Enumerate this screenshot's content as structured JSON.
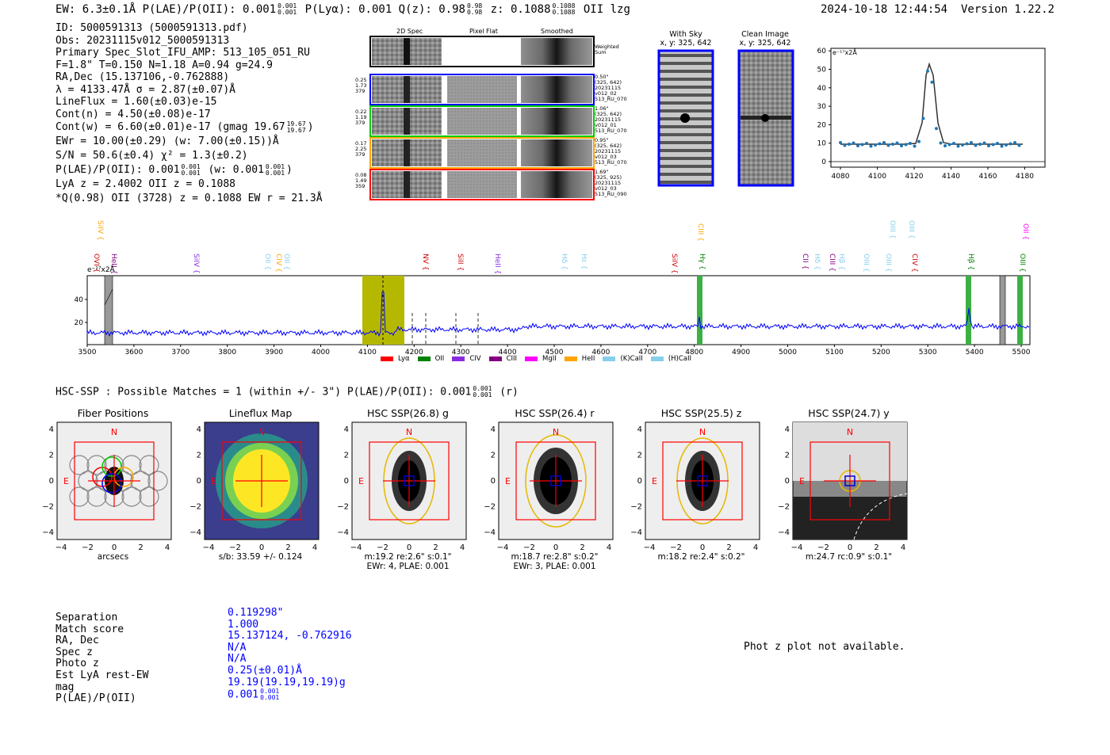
{
  "header": {
    "summary_prefix": "EW: 6.3±0.1Å  P(LAE)/P(OII): 0.001",
    "summary_frac1_top": "0.001",
    "summary_frac1_bot": "0.001",
    "summary_mid": "  P(Lyα): 0.001  Q(z): 0.98",
    "summary_frac2_top": "0.98",
    "summary_frac2_bot": "0.98",
    "summary_z": "  z: 0.1088",
    "summary_frac3_top": "0.1088",
    "summary_frac3_bot": "0.1088",
    "summary_tail": " OII   lzg",
    "timestamp": "2024-10-18 12:44:54",
    "version": "Version 1.22.2"
  },
  "info": {
    "id": "ID: 5000591313 (5000591313.pdf)",
    "obs": "Obs: 20231115v012_5000591313",
    "primary": "Primary Spec_Slot_IFU_AMP: 513_105_051_RU",
    "f_line": "F=1.8\"  T=0.150  N=1.18  A=0.94  g=24.9",
    "radec": "RA,Dec (15.137106,-0.762888)",
    "lambda": "λ = 4133.47Å  σ = 2.87(±0.07)Å",
    "lineflux": "LineFlux = 1.60(±0.03)e-15",
    "contn": "Cont(n) = 4.50(±0.08)e-17",
    "contw": "Cont(w) = 6.60(±0.01)e-17 (gmag 19.67",
    "contw_top": "19.67",
    "contw_bot": "19.67",
    "contw_end": ")",
    "ewr": "EWr = 10.00(±0.29) (w: 7.00(±0.15))Å",
    "sn": "S/N = 50.6(±0.4)  χ² = 1.3(±0.2)",
    "plae": "P(LAE)/P(OII): 0.001",
    "plae_top": "0.001",
    "plae_bot": "0.001",
    "plae_mid": " (w: 0.001",
    "plae_w_top": "0.001",
    "plae_w_bot": "0.001",
    "plae_end": ")",
    "lya": "LyA z = 2.4002  OII z = 0.1088",
    "q": "*Q(0.98) OII (3728) z = 0.1088  EW r = 21.3Å"
  },
  "cutouts": {
    "col_2d": "2D Spec",
    "col_flat": "Pixel Flat",
    "col_smooth": "Smoothed",
    "weighted": "Weighted Sum",
    "rows": [
      {
        "w1": "0.25",
        "w2": "1.73",
        "w3": "379",
        "n1": "0.50\"",
        "n2": "(325, 642)",
        "n3": "20231115",
        "n4": "v012_02",
        "n5": "513_RU_070",
        "color": "#0000ff"
      },
      {
        "w1": "0.22",
        "w2": "1.19",
        "w3": "379",
        "n1": "1.06\"",
        "n2": "(325, 642)",
        "n3": "20231115",
        "n4": "v012_01",
        "n5": "513_RU_070",
        "color": "#00cc00"
      },
      {
        "w1": "0.17",
        "w2": "2.25",
        "w3": "379",
        "n1": "0.95\"",
        "n2": "(325, 642)",
        "n3": "20231115",
        "n4": "v012_03",
        "n5": "513_RU_070",
        "color": "#ffa500"
      },
      {
        "w1": "0.08",
        "w2": "1.49",
        "w3": "359",
        "n1": "1.69\"",
        "n2": "(325, 925)",
        "n3": "20231115",
        "n4": "v012_03",
        "n5": "513_RU_090",
        "color": "#ff0000"
      }
    ]
  },
  "with_sky": {
    "title": "With Sky",
    "coords": "x, y: 325, 642"
  },
  "clean_image": {
    "title": "Clean Image",
    "coords": "x, y: 325, 642"
  },
  "fit_plot": {
    "units": "e⁻¹⁷x2Å",
    "x_ticks": [
      "4080",
      "4100",
      "4120",
      "4140",
      "4160",
      "4180"
    ],
    "y_ticks": [
      "0",
      "10",
      "20",
      "30",
      "40",
      "50",
      "60"
    ]
  },
  "spectrum": {
    "units": "e⁻¹⁷x2Å",
    "x_ticks": [
      "3500",
      "3600",
      "3700",
      "3800",
      "3900",
      "4000",
      "4100",
      "4200",
      "4300",
      "4400",
      "4500",
      "4600",
      "4700",
      "4800",
      "4900",
      "5000",
      "5100",
      "5200",
      "5300",
      "5400",
      "5500"
    ],
    "y_ticks": [
      "20",
      "40"
    ],
    "line_labels": [
      {
        "t": "OVI",
        "c": "#cc0000"
      },
      {
        "t": "HeII",
        "c": "#800080"
      },
      {
        "t": "SiIV",
        "c": "#8a2be2"
      },
      {
        "t": "OII",
        "c": "#87ceeb"
      },
      {
        "t": "CIV",
        "c": "#ffa500"
      },
      {
        "t": "OII",
        "c": "#87ceeb"
      },
      {
        "t": "NV",
        "c": "#cc0000"
      },
      {
        "t": "SiII",
        "c": "#cc0000"
      },
      {
        "t": "HeII",
        "c": "#8a2be2"
      },
      {
        "t": "Hδ",
        "c": "#87ceeb"
      },
      {
        "t": "Hε",
        "c": "#87ceeb"
      },
      {
        "t": "SiIV",
        "c": "#cc0000"
      },
      {
        "t": "CIII",
        "c": "#ffa500"
      },
      {
        "t": "Hγ",
        "c": "#008000"
      },
      {
        "t": "CII",
        "c": "#800080"
      },
      {
        "t": "Hδ",
        "c": "#87ceeb"
      },
      {
        "t": "CIII",
        "c": "#800080"
      },
      {
        "t": "Hβ",
        "c": "#87ceeb"
      },
      {
        "t": "OIII",
        "c": "#87ceeb"
      },
      {
        "t": "OIII",
        "c": "#87ceeb"
      },
      {
        "t": "CIV",
        "c": "#cc0000"
      },
      {
        "t": "Hβ",
        "c": "#008000"
      },
      {
        "t": "OIII",
        "c": "#008000"
      },
      {
        "t": "OII",
        "c": "#ff00ff"
      },
      {
        "t": "SiIV",
        "c": "#ffa500"
      },
      {
        "t": "OIII",
        "c": "#87ceeb"
      },
      {
        "t": "OIII",
        "c": "#87ceeb"
      }
    ],
    "legend": [
      {
        "name": "Lyα",
        "color": "#ff0000"
      },
      {
        "name": "OII",
        "color": "#008000"
      },
      {
        "name": "CIV",
        "color": "#8a2be2"
      },
      {
        "name": "CIII",
        "color": "#800080"
      },
      {
        "name": "MgII",
        "color": "#ff00ff"
      },
      {
        "name": "HeII",
        "color": "#ffa500"
      },
      {
        "name": "(K)CaII",
        "color": "#87ceeb"
      },
      {
        "name": "(H)CaII",
        "color": "#87ceeb"
      }
    ]
  },
  "hsc": {
    "summary": "HSC-SSP : Possible Matches = 1 (within +/- 3\")  P(LAE)/P(OII): 0.001",
    "summary_top": "0.001",
    "summary_bot": "0.001",
    "summary_end": " (r)",
    "panels": [
      {
        "title": "Fiber Positions",
        "cap1": "arcsecs",
        "cap2": ""
      },
      {
        "title": "Lineflux Map",
        "cap1": "s/b: 33.59 +/- 0.124",
        "cap2": ""
      },
      {
        "title": "HSC SSP(26.8) g",
        "cap1": "m:19.2  re:2.6\"  s:0.1\"",
        "cap2": "EWr: 4, PLAE: 0.001"
      },
      {
        "title": "HSC SSP(26.4) r",
        "cap1": "m:18.7  re:2.8\"  s:0.2\"",
        "cap2": "EWr: 3, PLAE: 0.001"
      },
      {
        "title": "HSC SSP(25.5) z",
        "cap1": "m:18.2  re:2.4\"  s:0.2\"",
        "cap2": ""
      },
      {
        "title": "HSC SSP(24.7) y",
        "cap1": "m:24.7  rc:0.9\"  s:0.1\"",
        "cap2": ""
      }
    ],
    "axis_ticks": [
      "−4",
      "−2",
      "0",
      "2",
      "4"
    ],
    "y_ticks": [
      "4",
      "2",
      "0",
      "−2",
      "−4"
    ],
    "north": "N",
    "east": "E"
  },
  "match": {
    "labels": [
      "Separation",
      "Match score",
      "RA, Dec",
      "Spec z",
      "Photo z",
      "Est LyA rest-EW",
      "mag",
      "P(LAE)/P(OII)"
    ],
    "values": [
      "0.119298\"",
      "1.000",
      "15.137124, -0.762916",
      "N/A",
      "N/A",
      "0.25(±0.01)Å",
      "19.19(19.19,19.19)g",
      "0.001"
    ],
    "plae_top": "0.001",
    "plae_bot": "0.001",
    "photz_note": "Phot z plot not available."
  },
  "colors": {
    "spectrum_line": "#0000ff",
    "highlight": "#b5b800",
    "emission_band": "#3cb043"
  }
}
